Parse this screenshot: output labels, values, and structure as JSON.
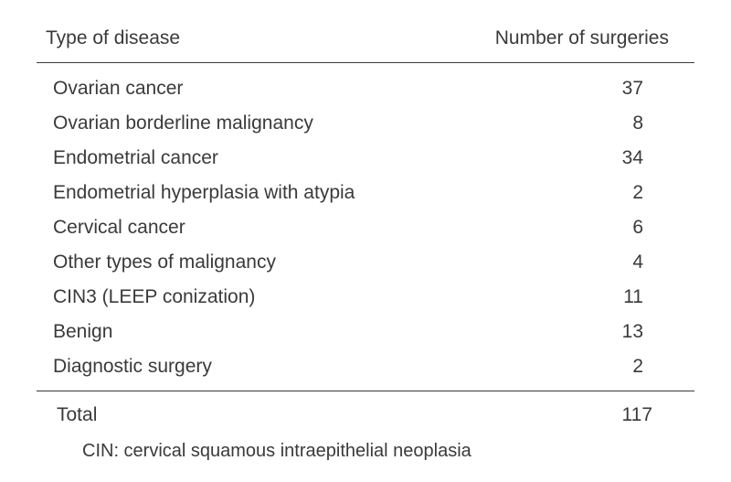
{
  "table": {
    "type": "table",
    "text_color": "#3a3a3a",
    "background_color": "#ffffff",
    "rule_color": "#3a3a3a",
    "font_family": "Arial, Helvetica, sans-serif",
    "font_size_pt": 16,
    "columns": [
      {
        "label": "Type of disease",
        "align": "left"
      },
      {
        "label": "Number of surgeries",
        "align": "right"
      }
    ],
    "rows": [
      {
        "label": "Ovarian cancer",
        "value": "37"
      },
      {
        "label": "Ovarian borderline malignancy",
        "value": "8"
      },
      {
        "label": "Endometrial cancer",
        "value": "34"
      },
      {
        "label": "Endometrial hyperplasia with atypia",
        "value": "2"
      },
      {
        "label": "Cervical cancer",
        "value": "6"
      },
      {
        "label": "Other types of malignancy",
        "value": "4"
      },
      {
        "label": "CIN3 (LEEP conization)",
        "value": "11"
      },
      {
        "label": "Benign",
        "value": "13"
      },
      {
        "label": "Diagnostic surgery",
        "value": "2"
      }
    ],
    "total": {
      "label": "Total",
      "value": "117"
    },
    "footnote": "CIN: cervical squamous intraepithelial neoplasia"
  }
}
